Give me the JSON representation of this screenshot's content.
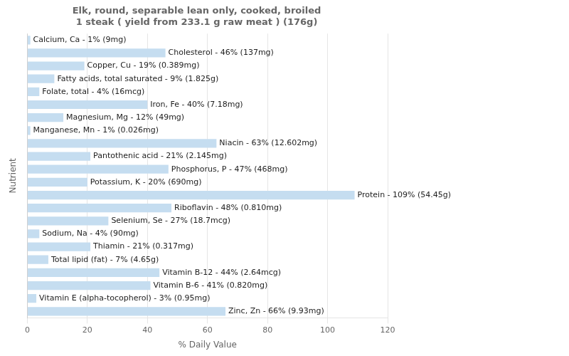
{
  "chart_data": {
    "type": "bar",
    "orientation": "horizontal",
    "title": "Elk, round, separable lean only, cooked, broiled\n1 steak ( yield from 233.1 g raw meat ) (176g)",
    "xlabel": "% Daily Value",
    "ylabel": "Nutrient",
    "categories": [
      "Calcium, Ca - 1% (9mg)",
      "Cholesterol - 46% (137mg)",
      "Copper, Cu - 19% (0.389mg)",
      "Fatty acids, total saturated - 9% (1.825g)",
      "Folate, total - 4% (16mcg)",
      "Iron, Fe - 40% (7.18mg)",
      "Magnesium, Mg - 12% (49mg)",
      "Manganese, Mn - 1% (0.026mg)",
      "Niacin - 63% (12.602mg)",
      "Pantothenic acid - 21% (2.145mg)",
      "Phosphorus, P - 47% (468mg)",
      "Potassium, K - 20% (690mg)",
      "Protein - 109% (54.45g)",
      "Riboflavin - 48% (0.810mg)",
      "Selenium, Se - 27% (18.7mcg)",
      "Sodium, Na - 4% (90mg)",
      "Thiamin - 21% (0.317mg)",
      "Total lipid (fat) - 7% (4.65g)",
      "Vitamin B-12 - 44% (2.64mcg)",
      "Vitamin B-6 - 41% (0.820mg)",
      "Vitamin E (alpha-tocopherol) - 3% (0.95mg)",
      "Zinc, Zn - 66% (9.93mg)"
    ],
    "values": [
      1,
      46,
      19,
      9,
      4,
      40,
      12,
      1,
      63,
      21,
      47,
      20,
      109,
      48,
      27,
      4,
      21,
      7,
      44,
      41,
      3,
      66
    ],
    "color": "#c5ddf0",
    "xlim": [
      0,
      120
    ],
    "xticks": [
      0,
      20,
      40,
      60,
      80,
      100,
      120
    ],
    "grid": true,
    "tick_labels": "x"
  }
}
